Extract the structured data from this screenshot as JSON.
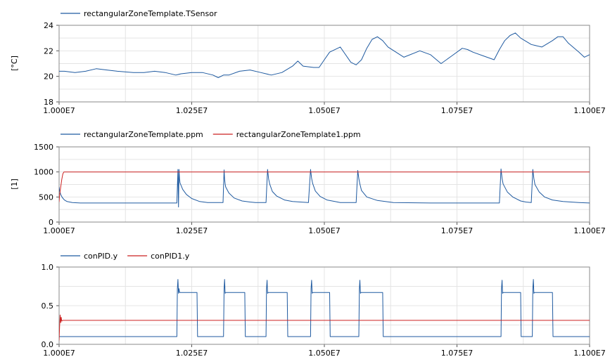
{
  "chart_data": [
    {
      "type": "line",
      "ylabel": "[°C]",
      "xlim": [
        10000000,
        11000000
      ],
      "ylim": [
        18,
        24
      ],
      "grid": true,
      "legend_placement": "top-left",
      "x_ticks": [
        "1.000E7",
        "1.025E7",
        "1.050E7",
        "1.075E7",
        "1.100E7"
      ],
      "y_ticks": [
        "24",
        "22",
        "20",
        "18"
      ],
      "series": [
        {
          "name": "rectangularZoneTemplate.TSensor",
          "color": "#1f5aa0",
          "x": [
            10000000,
            10010000,
            10030000,
            10050000,
            10070000,
            10090000,
            10110000,
            10140000,
            10160000,
            10180000,
            10200000,
            10220000,
            10230000,
            10250000,
            10270000,
            10290000,
            10300000,
            10310000,
            10320000,
            10340000,
            10360000,
            10380000,
            10400000,
            10420000,
            10440000,
            10450000,
            10460000,
            10480000,
            10490000,
            10500000,
            10510000,
            10530000,
            10550000,
            10560000,
            10570000,
            10580000,
            10590000,
            10600000,
            10610000,
            10620000,
            10650000,
            10680000,
            10700000,
            10720000,
            10740000,
            10760000,
            10770000,
            10780000,
            10800000,
            10820000,
            10830000,
            10840000,
            10850000,
            10860000,
            10870000,
            10890000,
            10910000,
            10930000,
            10940000,
            10950000,
            10960000,
            10980000,
            10990000,
            11000000
          ],
          "y": [
            20.4,
            20.4,
            20.3,
            20.4,
            20.6,
            20.5,
            20.4,
            20.3,
            20.3,
            20.4,
            20.3,
            20.1,
            20.2,
            20.3,
            20.3,
            20.1,
            19.9,
            20.1,
            20.1,
            20.4,
            20.5,
            20.3,
            20.1,
            20.3,
            20.8,
            21.2,
            20.8,
            20.7,
            20.7,
            21.3,
            21.9,
            22.3,
            21.1,
            20.9,
            21.3,
            22.2,
            22.9,
            23.1,
            22.8,
            22.3,
            21.5,
            22.0,
            21.7,
            21.0,
            21.6,
            22.2,
            22.1,
            21.9,
            21.6,
            21.3,
            22.1,
            22.8,
            23.2,
            23.4,
            23.0,
            22.5,
            22.3,
            22.8,
            23.1,
            23.1,
            22.6,
            21.9,
            21.5,
            21.7
          ]
        }
      ]
    },
    {
      "type": "line",
      "ylabel": "[1]",
      "xlim": [
        10000000,
        11000000
      ],
      "ylim": [
        0,
        1500
      ],
      "grid": true,
      "legend_placement": "top-left",
      "x_ticks": [
        "1.000E7",
        "1.025E7",
        "1.050E7",
        "1.075E7",
        "1.100E7"
      ],
      "y_ticks": [
        "1500",
        "1000",
        "500",
        "0"
      ],
      "series": [
        {
          "name": "rectangularZoneTemplate.ppm",
          "color": "#1f5aa0",
          "x": [
            10000000,
            10001000,
            10003000,
            10006000,
            10010000,
            10015000,
            10025000,
            10040000,
            10060000,
            10100000,
            10222000,
            10224000,
            10225000,
            10226000,
            10227000,
            10228000,
            10233000,
            10240000,
            10250000,
            10265000,
            10280000,
            10309000,
            10311000,
            10312000,
            10313000,
            10314000,
            10320000,
            10330000,
            10345000,
            10360000,
            10370000,
            10390000,
            10393000,
            10395000,
            10397000,
            10402000,
            10410000,
            10425000,
            10440000,
            10455000,
            10470000,
            10474000,
            10476000,
            10478000,
            10483000,
            10492000,
            10505000,
            10520000,
            10530000,
            10560000,
            10563000,
            10565000,
            10567000,
            10570000,
            10580000,
            10600000,
            10630000,
            10700000,
            10830000,
            10833000,
            10835000,
            10837000,
            10845000,
            10855000,
            10870000,
            10880000,
            10890000,
            10893000,
            10895000,
            10897000,
            10905000,
            10915000,
            10930000,
            10950000,
            10980000,
            11000000
          ],
          "y": [
            700,
            620,
            550,
            490,
            440,
            410,
            390,
            380,
            380,
            380,
            380,
            1050,
            300,
            1050,
            860,
            780,
            650,
            550,
            470,
            410,
            390,
            390,
            1040,
            860,
            760,
            700,
            580,
            480,
            420,
            400,
            390,
            390,
            1050,
            860,
            760,
            610,
            520,
            440,
            410,
            400,
            390,
            1050,
            870,
            770,
            620,
            510,
            440,
            410,
            390,
            390,
            1030,
            870,
            760,
            630,
            500,
            430,
            390,
            380,
            380,
            1060,
            870,
            760,
            600,
            500,
            420,
            400,
            390,
            1050,
            870,
            750,
            600,
            500,
            440,
            410,
            390,
            380
          ]
        },
        {
          "name": "rectangularZoneTemplate1.ppm",
          "color": "#cc2222",
          "x": [
            10000000,
            10001000,
            10003000,
            10005000,
            10007000,
            10009000,
            11000000
          ],
          "y": [
            400,
            550,
            700,
            850,
            960,
            1000,
            1000
          ]
        }
      ]
    },
    {
      "type": "line",
      "xlim": [
        10000000,
        11000000
      ],
      "ylim": [
        0,
        1
      ],
      "grid": true,
      "legend_placement": "top-left",
      "x_ticks": [
        "1.000E7",
        "1.025E7",
        "1.050E7",
        "1.075E7",
        "1.100E7"
      ],
      "y_ticks": [
        "1.0",
        "0.5",
        "0.0"
      ],
      "series": [
        {
          "name": "conPID.y",
          "color": "#1f5aa0",
          "x": [
            10000000,
            10004000,
            10222000,
            10223000,
            10224000,
            10225000,
            10226000,
            10227000,
            10260000,
            10261000,
            10310000,
            10311000,
            10312000,
            10313000,
            10314000,
            10350000,
            10351000,
            10390000,
            10391000,
            10392000,
            10393000,
            10394000,
            10430000,
            10431000,
            10474000,
            10475000,
            10476000,
            10477000,
            10478000,
            10510000,
            10511000,
            10565000,
            10566000,
            10567000,
            10568000,
            10569000,
            10610000,
            10611000,
            10833000,
            10834000,
            10835000,
            10836000,
            10837000,
            10870000,
            10871000,
            10892000,
            10893000,
            10894000,
            10895000,
            10896000,
            10930000,
            10931000,
            11000000
          ],
          "y": [
            0.1,
            0.1,
            0.1,
            0.72,
            0.84,
            0.66,
            0.72,
            0.67,
            0.67,
            0.1,
            0.1,
            0.72,
            0.84,
            0.66,
            0.67,
            0.67,
            0.1,
            0.1,
            0.72,
            0.83,
            0.66,
            0.67,
            0.67,
            0.1,
            0.1,
            0.72,
            0.83,
            0.66,
            0.67,
            0.67,
            0.1,
            0.1,
            0.72,
            0.83,
            0.66,
            0.67,
            0.67,
            0.1,
            0.1,
            0.72,
            0.83,
            0.66,
            0.67,
            0.67,
            0.1,
            0.1,
            0.72,
            0.84,
            0.66,
            0.67,
            0.67,
            0.1,
            0.1
          ]
        },
        {
          "name": "conPID1.y",
          "color": "#cc2222",
          "x": [
            10000000,
            10001000,
            10002000,
            10003000,
            10004000,
            10005000,
            10007000,
            11000000
          ],
          "y": [
            0.05,
            0.25,
            0.38,
            0.28,
            0.35,
            0.3,
            0.31,
            0.31
          ]
        }
      ]
    }
  ]
}
